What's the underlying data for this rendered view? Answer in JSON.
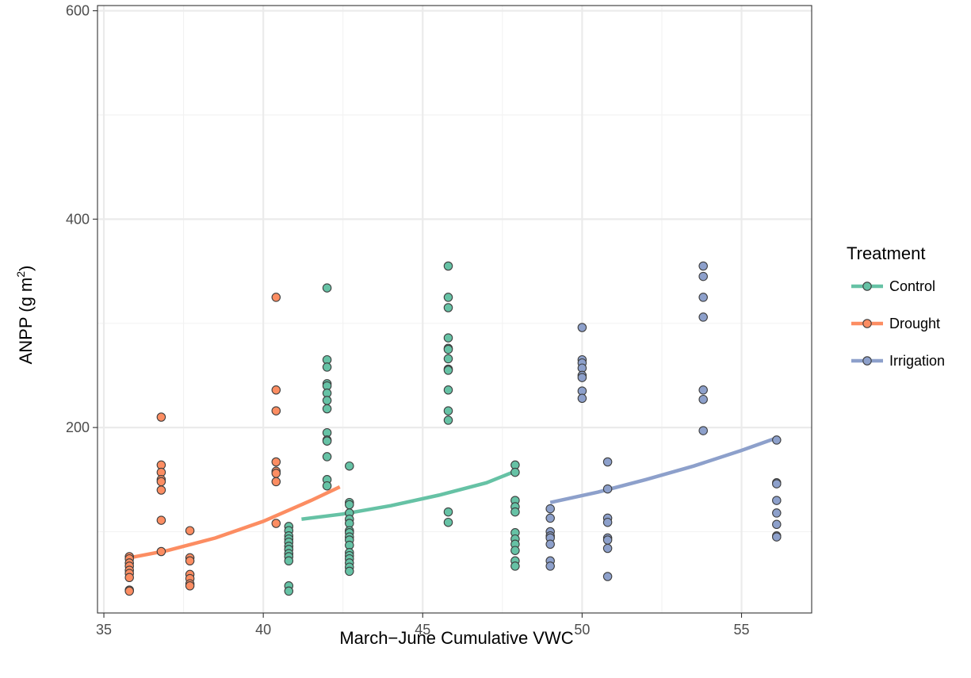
{
  "chart_data": {
    "type": "scatter",
    "title": "",
    "xlabel": "March−June Cumulative VWC",
    "ylabel_main": "ANPP (g m",
    "ylabel_sup": "2",
    "ylabel_end": ")",
    "xlim": [
      34.8,
      57.2
    ],
    "ylim": [
      22,
      605
    ],
    "xticks": [
      35,
      40,
      45,
      50,
      55
    ],
    "yticks": [
      200,
      400,
      600
    ],
    "grid": true,
    "legend": {
      "title": "Treatment",
      "placement": "right"
    },
    "series": [
      {
        "name": "Control",
        "color": "#66c2a5",
        "points": [
          [
            40.8,
            105
          ],
          [
            40.8,
            101
          ],
          [
            40.8,
            96
          ],
          [
            40.8,
            93
          ],
          [
            40.8,
            90
          ],
          [
            40.8,
            86
          ],
          [
            40.8,
            83
          ],
          [
            40.8,
            79
          ],
          [
            40.8,
            76
          ],
          [
            40.8,
            72
          ],
          [
            40.8,
            48
          ],
          [
            40.8,
            43
          ],
          [
            42.0,
            334
          ],
          [
            42.0,
            265
          ],
          [
            42.0,
            258
          ],
          [
            42.0,
            242
          ],
          [
            42.0,
            240
          ],
          [
            42.0,
            233
          ],
          [
            42.0,
            226
          ],
          [
            42.0,
            218
          ],
          [
            42.0,
            195
          ],
          [
            42.0,
            188
          ],
          [
            42.0,
            187
          ],
          [
            42.0,
            172
          ],
          [
            42.0,
            150
          ],
          [
            42.0,
            144
          ],
          [
            42.7,
            163
          ],
          [
            42.7,
            128
          ],
          [
            42.7,
            126
          ],
          [
            42.7,
            118
          ],
          [
            42.7,
            112
          ],
          [
            42.7,
            108
          ],
          [
            42.7,
            101
          ],
          [
            42.7,
            99
          ],
          [
            42.7,
            95
          ],
          [
            42.7,
            92
          ],
          [
            42.7,
            87
          ],
          [
            42.7,
            80
          ],
          [
            42.7,
            77
          ],
          [
            42.7,
            74
          ],
          [
            42.7,
            70
          ],
          [
            42.7,
            66
          ],
          [
            42.7,
            62
          ],
          [
            45.8,
            355
          ],
          [
            45.8,
            325
          ],
          [
            45.8,
            315
          ],
          [
            45.8,
            286
          ],
          [
            45.8,
            276
          ],
          [
            45.8,
            275
          ],
          [
            45.8,
            266
          ],
          [
            45.8,
            256
          ],
          [
            45.8,
            255
          ],
          [
            45.8,
            236
          ],
          [
            45.8,
            216
          ],
          [
            45.8,
            207
          ],
          [
            45.8,
            119
          ],
          [
            45.8,
            109
          ],
          [
            47.9,
            164
          ],
          [
            47.9,
            157
          ],
          [
            47.9,
            130
          ],
          [
            47.9,
            124
          ],
          [
            47.9,
            119
          ],
          [
            47.9,
            99
          ],
          [
            47.9,
            93
          ],
          [
            47.9,
            88
          ],
          [
            47.9,
            82
          ],
          [
            47.9,
            72
          ],
          [
            47.9,
            67
          ]
        ],
        "fit": [
          [
            41.2,
            112
          ],
          [
            42.5,
            117
          ],
          [
            44.0,
            125
          ],
          [
            45.5,
            135
          ],
          [
            47.0,
            147
          ],
          [
            47.9,
            158
          ]
        ]
      },
      {
        "name": "Drought",
        "color": "#fc8d62",
        "points": [
          [
            35.8,
            76
          ],
          [
            35.8,
            74
          ],
          [
            35.8,
            70
          ],
          [
            35.8,
            67
          ],
          [
            35.8,
            63
          ],
          [
            35.8,
            60
          ],
          [
            35.8,
            56
          ],
          [
            35.8,
            44
          ],
          [
            35.8,
            43
          ],
          [
            36.8,
            210
          ],
          [
            36.8,
            164
          ],
          [
            36.8,
            157
          ],
          [
            36.8,
            150
          ],
          [
            36.8,
            148
          ],
          [
            36.8,
            140
          ],
          [
            36.8,
            111
          ],
          [
            36.8,
            81
          ],
          [
            37.7,
            101
          ],
          [
            37.7,
            75
          ],
          [
            37.7,
            72
          ],
          [
            37.7,
            59
          ],
          [
            37.7,
            55
          ],
          [
            37.7,
            50
          ],
          [
            37.7,
            48
          ],
          [
            40.4,
            325
          ],
          [
            40.4,
            236
          ],
          [
            40.4,
            216
          ],
          [
            40.4,
            167
          ],
          [
            40.4,
            158
          ],
          [
            40.4,
            156
          ],
          [
            40.4,
            148
          ],
          [
            40.4,
            108
          ]
        ],
        "fit": [
          [
            35.8,
            75
          ],
          [
            37.0,
            82
          ],
          [
            38.5,
            94
          ],
          [
            40.0,
            110
          ],
          [
            41.5,
            130
          ],
          [
            42.4,
            143
          ]
        ]
      },
      {
        "name": "Irrigation",
        "color": "#8da0cb",
        "points": [
          [
            49.0,
            122
          ],
          [
            49.0,
            113
          ],
          [
            49.0,
            100
          ],
          [
            49.0,
            96
          ],
          [
            49.0,
            94
          ],
          [
            49.0,
            88
          ],
          [
            49.0,
            72
          ],
          [
            49.0,
            67
          ],
          [
            50.0,
            296
          ],
          [
            50.0,
            265
          ],
          [
            50.0,
            262
          ],
          [
            50.0,
            257
          ],
          [
            50.0,
            250
          ],
          [
            50.0,
            248
          ],
          [
            50.0,
            235
          ],
          [
            50.0,
            228
          ],
          [
            50.8,
            167
          ],
          [
            50.8,
            141
          ],
          [
            50.8,
            113
          ],
          [
            50.8,
            109
          ],
          [
            50.8,
            94
          ],
          [
            50.8,
            92
          ],
          [
            50.8,
            84
          ],
          [
            50.8,
            57
          ],
          [
            53.8,
            355
          ],
          [
            53.8,
            345
          ],
          [
            53.8,
            325
          ],
          [
            53.8,
            306
          ],
          [
            53.8,
            236
          ],
          [
            53.8,
            227
          ],
          [
            53.8,
            197
          ],
          [
            56.1,
            188
          ],
          [
            56.1,
            147
          ],
          [
            56.1,
            146
          ],
          [
            56.1,
            130
          ],
          [
            56.1,
            118
          ],
          [
            56.1,
            107
          ],
          [
            56.1,
            96
          ],
          [
            56.1,
            95
          ]
        ],
        "fit": [
          [
            49.0,
            128
          ],
          [
            50.5,
            138
          ],
          [
            52.0,
            150
          ],
          [
            53.5,
            163
          ],
          [
            55.0,
            178
          ],
          [
            56.1,
            190
          ]
        ]
      }
    ]
  }
}
